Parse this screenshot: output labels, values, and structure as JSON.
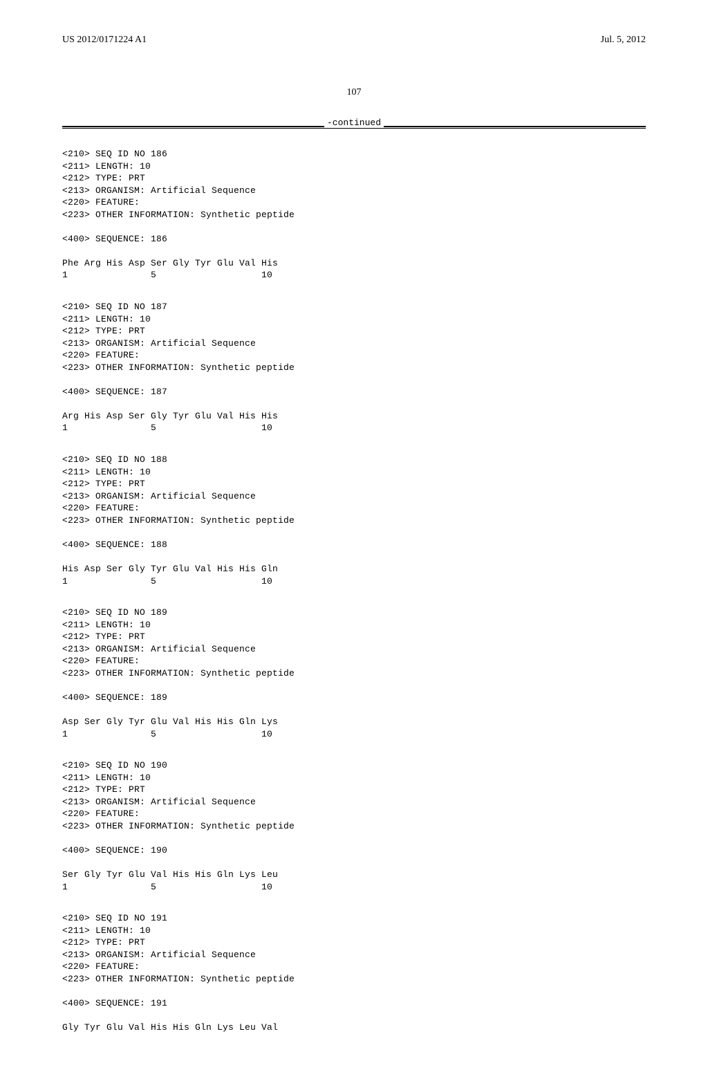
{
  "header": {
    "patent_number": "US 2012/0171224 A1",
    "date": "Jul. 5, 2012"
  },
  "page_number": "107",
  "continued_label": "-continued",
  "sequences": [
    {
      "id": "186",
      "lines": [
        "<210> SEQ ID NO 186",
        "<211> LENGTH: 10",
        "<212> TYPE: PRT",
        "<213> ORGANISM: Artificial Sequence",
        "<220> FEATURE:",
        "<223> OTHER INFORMATION: Synthetic peptide",
        "",
        "<400> SEQUENCE: 186",
        "",
        "Phe Arg His Asp Ser Gly Tyr Glu Val His",
        "1               5                   10"
      ]
    },
    {
      "id": "187",
      "lines": [
        "<210> SEQ ID NO 187",
        "<211> LENGTH: 10",
        "<212> TYPE: PRT",
        "<213> ORGANISM: Artificial Sequence",
        "<220> FEATURE:",
        "<223> OTHER INFORMATION: Synthetic peptide",
        "",
        "<400> SEQUENCE: 187",
        "",
        "Arg His Asp Ser Gly Tyr Glu Val His His",
        "1               5                   10"
      ]
    },
    {
      "id": "188",
      "lines": [
        "<210> SEQ ID NO 188",
        "<211> LENGTH: 10",
        "<212> TYPE: PRT",
        "<213> ORGANISM: Artificial Sequence",
        "<220> FEATURE:",
        "<223> OTHER INFORMATION: Synthetic peptide",
        "",
        "<400> SEQUENCE: 188",
        "",
        "His Asp Ser Gly Tyr Glu Val His His Gln",
        "1               5                   10"
      ]
    },
    {
      "id": "189",
      "lines": [
        "<210> SEQ ID NO 189",
        "<211> LENGTH: 10",
        "<212> TYPE: PRT",
        "<213> ORGANISM: Artificial Sequence",
        "<220> FEATURE:",
        "<223> OTHER INFORMATION: Synthetic peptide",
        "",
        "<400> SEQUENCE: 189",
        "",
        "Asp Ser Gly Tyr Glu Val His His Gln Lys",
        "1               5                   10"
      ]
    },
    {
      "id": "190",
      "lines": [
        "<210> SEQ ID NO 190",
        "<211> LENGTH: 10",
        "<212> TYPE: PRT",
        "<213> ORGANISM: Artificial Sequence",
        "<220> FEATURE:",
        "<223> OTHER INFORMATION: Synthetic peptide",
        "",
        "<400> SEQUENCE: 190",
        "",
        "Ser Gly Tyr Glu Val His His Gln Lys Leu",
        "1               5                   10"
      ]
    },
    {
      "id": "191",
      "lines": [
        "<210> SEQ ID NO 191",
        "<211> LENGTH: 10",
        "<212> TYPE: PRT",
        "<213> ORGANISM: Artificial Sequence",
        "<220> FEATURE:",
        "<223> OTHER INFORMATION: Synthetic peptide",
        "",
        "<400> SEQUENCE: 191",
        "",
        "Gly Tyr Glu Val His His Gln Lys Leu Val"
      ]
    }
  ]
}
